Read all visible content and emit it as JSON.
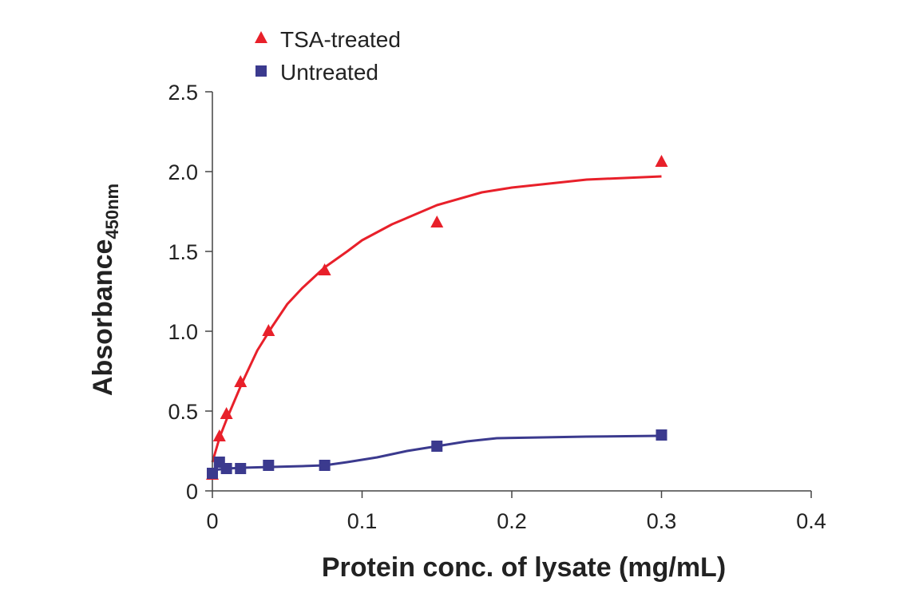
{
  "chart_data": {
    "type": "scatter",
    "xlabel": "Protein conc. of lysate (mg/mL)",
    "ylabel_main": "Absorbance",
    "ylabel_sub": "450nm",
    "xlim": [
      0,
      0.4
    ],
    "ylim": [
      0,
      2.5
    ],
    "x_ticks": [
      {
        "value": 0,
        "label": "0"
      },
      {
        "value": 0.1,
        "label": "0.1"
      },
      {
        "value": 0.2,
        "label": "0.2"
      },
      {
        "value": 0.3,
        "label": "0.3"
      },
      {
        "value": 0.4,
        "label": "0.4"
      }
    ],
    "y_ticks": [
      {
        "value": 0,
        "label": "0"
      },
      {
        "value": 0.5,
        "label": "0.5"
      },
      {
        "value": 1.0,
        "label": "1.0"
      },
      {
        "value": 1.5,
        "label": "1.5"
      },
      {
        "value": 2.0,
        "label": "2.0"
      },
      {
        "value": 2.5,
        "label": "2.5"
      }
    ],
    "grid": false,
    "legend_position": "top-left",
    "series": [
      {
        "name": "TSA-treated",
        "marker": "triangle",
        "color": "#e8202a",
        "x": [
          0,
          0.0047,
          0.0094,
          0.0188,
          0.0375,
          0.075,
          0.15,
          0.3
        ],
        "y": [
          0.1,
          0.34,
          0.48,
          0.68,
          1.0,
          1.38,
          1.68,
          2.06
        ],
        "fit_x": [
          0,
          0.005,
          0.01,
          0.02,
          0.03,
          0.04,
          0.05,
          0.06,
          0.075,
          0.09,
          0.1,
          0.12,
          0.15,
          0.18,
          0.2,
          0.25,
          0.3
        ],
        "fit_y": [
          0.18,
          0.34,
          0.46,
          0.68,
          0.88,
          1.03,
          1.17,
          1.27,
          1.4,
          1.5,
          1.57,
          1.67,
          1.79,
          1.87,
          1.9,
          1.95,
          1.97
        ]
      },
      {
        "name": "Untreated",
        "marker": "square",
        "color": "#3b3a8e",
        "x": [
          0,
          0.0047,
          0.0094,
          0.0188,
          0.0375,
          0.075,
          0.15,
          0.3
        ],
        "y": [
          0.11,
          0.18,
          0.14,
          0.14,
          0.16,
          0.16,
          0.28,
          0.35
        ],
        "fit_x": [
          0,
          0.01,
          0.02,
          0.04,
          0.06,
          0.075,
          0.09,
          0.11,
          0.13,
          0.15,
          0.17,
          0.19,
          0.22,
          0.25,
          0.3
        ],
        "fit_y": [
          0.13,
          0.14,
          0.145,
          0.15,
          0.155,
          0.16,
          0.18,
          0.21,
          0.25,
          0.28,
          0.31,
          0.33,
          0.335,
          0.34,
          0.345
        ]
      }
    ]
  }
}
